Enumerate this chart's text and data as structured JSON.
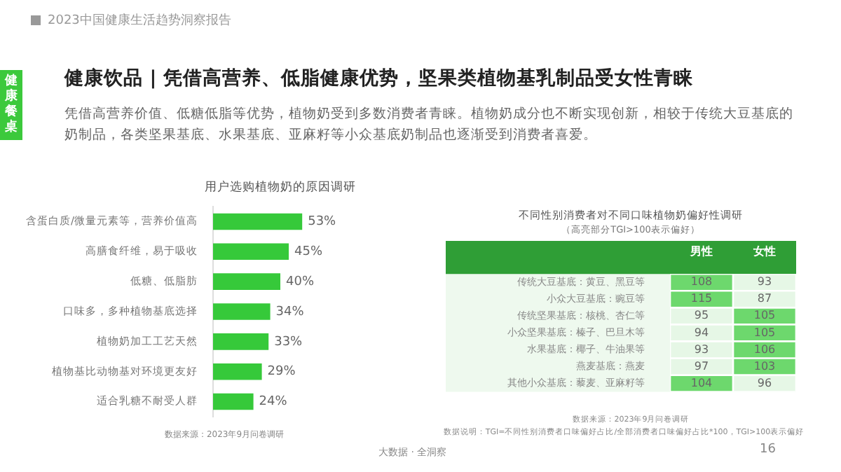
{
  "chart_data": [
    {
      "type": "bar",
      "orientation": "horizontal",
      "title": "用户选购植物奶的原因调研",
      "categories": [
        "含蛋白质/微量元素等，营养价值高",
        "高膳食纤维，易于吸收",
        "低糖、低脂肪",
        "口味多，多种植物基底选择",
        "植物奶加工工艺天然",
        "植物基比动物基对环境更友好",
        "适合乳糖不耐受人群"
      ],
      "values": [
        53,
        45,
        40,
        34,
        33,
        29,
        24
      ],
      "color": "#36c93a",
      "value_labels": [
        "53%",
        "45%",
        "40%",
        "34%",
        "33%",
        "29%",
        "24%"
      ],
      "annotations": [
        "2023中国健康生活趋势洞察报告",
        "健康饮品 | 凭借高营养、低脂健康优势，坚果类植物基乳制品受女性青睐",
        "凭借高营养价值、低糖低脂等优势，植物奶受到多数消费者青睐。植物奶成分也不断实现创新，相较于传统大豆基底的奶制品，各类坚果基底、水果基底、亚麻籽等小众基底奶制品也逐渐受到消费者喜爱。",
        "健康餐桌",
        "数据来源：2023年9月问卷调研",
        "大数据 · 全洞察",
        "16"
      ]
    },
    {
      "type": "heatmap",
      "title": "不同性别消费者对不同口味植物奶偏好性调研",
      "subtitle": "（高亮部分TGI>100表示偏好）",
      "categories": [
        "男性",
        "女性"
      ],
      "y_categories": [
        "传统大豆基底：黄豆、黑豆等",
        "小众大豆基底：豌豆等",
        "传统坚果基底：核桃、杏仁等",
        "小众坚果基底：榛子、巴旦木等",
        "水果基底：椰子、牛油果等",
        "燕麦基底：燕麦",
        "其他小众基底：藜麦、亚麻籽等"
      ],
      "data_labels": true,
      "cells": [
        [
          108,
          93
        ],
        [
          115,
          87
        ],
        [
          95,
          105
        ],
        [
          94,
          105
        ],
        [
          93,
          106
        ],
        [
          97,
          103
        ],
        [
          104,
          96
        ]
      ],
      "colors": [
        [
          "#6dd86d",
          "#e6f7e6"
        ],
        [
          "#6dd86d",
          "#e6f7e6"
        ],
        [
          "#e6f7e6",
          "#6dd86d"
        ],
        [
          "#e6f7e6",
          "#6dd86d"
        ],
        [
          "#e6f7e6",
          "#6dd86d"
        ],
        [
          "#e6f7e6",
          "#6dd86d"
        ],
        [
          "#6dd86d",
          "#e6f7e6"
        ]
      ],
      "annotations": [
        "数据来源：2023年9月问卷调研",
        "数据说明：TGI=不同性别消费者口味偏好占比/全部消费者口味偏好占比*100，TGI>100表示偏好"
      ]
    }
  ]
}
